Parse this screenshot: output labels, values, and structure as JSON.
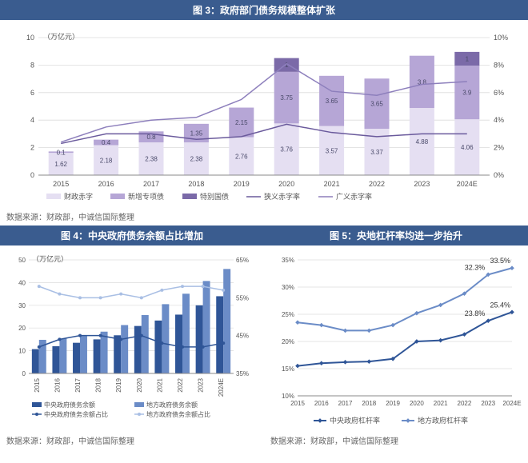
{
  "fig3": {
    "title": "图 3：政府部门债务规模整体扩张",
    "source": "数据来源：财政部，中诚信国际整理",
    "type": "bar+line-dual-axis",
    "unit_label": "（万亿元）",
    "y_left": {
      "min": 0,
      "max": 10,
      "step": 2,
      "label_suffix": ""
    },
    "y_right": {
      "min": 0,
      "max": 10,
      "step": 2,
      "label_suffix": "%"
    },
    "categories": [
      "2015",
      "2016",
      "2017",
      "2018",
      "2019",
      "2020",
      "2021",
      "2022",
      "2023",
      "2024E"
    ],
    "stack_series": [
      {
        "name": "财政赤字",
        "key": "deficit",
        "color": "#e5dff2",
        "values": [
          1.62,
          2.18,
          2.38,
          2.38,
          2.76,
          3.76,
          3.57,
          3.37,
          4.88,
          4.06
        ]
      },
      {
        "name": "新增专项债",
        "key": "special_bond",
        "color": "#b6a6d6",
        "values": [
          0.1,
          0.4,
          0.8,
          1.35,
          2.15,
          3.75,
          3.65,
          3.65,
          3.8,
          3.9
        ]
      },
      {
        "name": "特别国债",
        "key": "special_treasury",
        "color": "#7b6aa8",
        "values": [
          0,
          0,
          0,
          0,
          0,
          1.0,
          0,
          0,
          0,
          1.0
        ]
      }
    ],
    "line_series": [
      {
        "name": "狭义赤字率",
        "key": "narrow",
        "color": "#6a5a9c",
        "width": 1.5,
        "pct": [
          2.3,
          3.0,
          3.0,
          2.6,
          2.8,
          3.7,
          3.1,
          2.8,
          3.0,
          3.0
        ]
      },
      {
        "name": "广义赤字率",
        "key": "broad",
        "color": "#8d7fbc",
        "width": 1.5,
        "pct": [
          2.4,
          3.5,
          4.0,
          4.2,
          5.5,
          8.1,
          6.1,
          5.8,
          6.6,
          6.8
        ]
      }
    ],
    "legend_order": [
      "财政赤字",
      "新增专项债",
      "特别国债",
      "狭义赤字率",
      "广义赤字率"
    ],
    "grid_color": "#dcdcdc",
    "bar_width": 0.55,
    "label_fontsize": 9,
    "tick_fontsize": 9,
    "datalabel_fontsize": 8
  },
  "fig4": {
    "title": "图 4：中央政府债务余额占比增加",
    "source": "数据来源：财政部，中诚信国际整理",
    "type": "grouped-bar+line-dual-axis",
    "unit_label": "（万亿元）",
    "y_left": {
      "min": 0,
      "max": 50,
      "step": 10
    },
    "y_right": {
      "min": 35,
      "max": 65,
      "step": 10,
      "suffix": "%"
    },
    "categories": [
      "2015",
      "2016",
      "2017",
      "2018",
      "2019",
      "2020",
      "2021",
      "2022",
      "2023",
      "2024E"
    ],
    "bar_series": [
      {
        "name": "中央政府债务余额",
        "color": "#2f5597",
        "values": [
          10.7,
          12.0,
          13.5,
          15.0,
          16.8,
          20.9,
          23.3,
          25.9,
          30.0,
          34.0
        ]
      },
      {
        "name": "地方政府债务余额",
        "color": "#6b8cc7",
        "values": [
          14.8,
          15.3,
          16.5,
          18.4,
          21.3,
          25.7,
          30.5,
          35.1,
          40.7,
          46.0
        ]
      }
    ],
    "line_series": [
      {
        "name": "中央政府债务余额占比",
        "color": "#2f5597",
        "pct": [
          42,
          44,
          45,
          45,
          44,
          45,
          43,
          42,
          42,
          43
        ]
      },
      {
        "name": "地方政府债务余额占比",
        "color": "#a9bfe4",
        "pct": [
          58,
          56,
          55,
          55,
          56,
          55,
          57,
          58,
          58,
          57
        ]
      }
    ],
    "legend": [
      "中央政府债务余额",
      "地方政府债务余额",
      "中央政府债务余额占比",
      "地方政府债务余额占比"
    ],
    "grid_color": "#dcdcdc",
    "bar_width": 0.35,
    "tick_fontsize": 8,
    "rotate_xticks": true
  },
  "fig5": {
    "title": "图 5：央地杠杆率均进一步抬升",
    "source": "数据来源：财政部，中诚信国际整理",
    "type": "line",
    "y": {
      "min": 10,
      "max": 35,
      "step": 5,
      "suffix": "%"
    },
    "categories": [
      "2015",
      "2016",
      "2017",
      "2018",
      "2019",
      "2020",
      "2021",
      "2022",
      "2023",
      "2024E"
    ],
    "series": [
      {
        "name": "中央政府杠杆率",
        "color": "#2f5597",
        "width": 2,
        "pct": [
          15.5,
          16.0,
          16.2,
          16.3,
          16.8,
          20.0,
          20.2,
          21.3,
          23.8,
          25.4
        ],
        "end_label": "25.4%",
        "mid_label": "23.8%"
      },
      {
        "name": "地方政府杠杆率",
        "color": "#6b8cc7",
        "width": 2,
        "pct": [
          23.5,
          23.0,
          22.0,
          22.0,
          23.0,
          25.2,
          26.7,
          28.8,
          32.3,
          33.5
        ],
        "end_label": "33.5%",
        "mid_label": "32.3%"
      }
    ],
    "grid_color": "#dcdcdc",
    "tick_fontsize": 8
  }
}
